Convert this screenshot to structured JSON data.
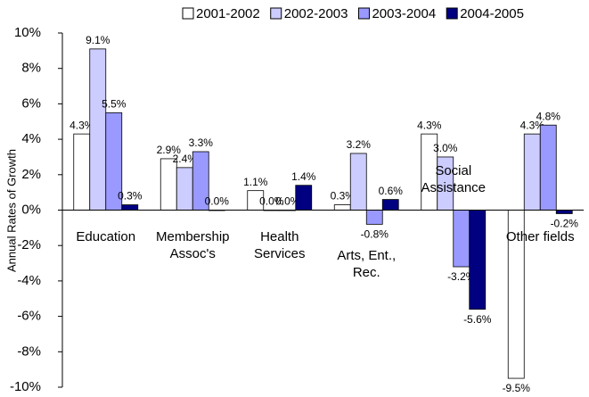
{
  "chart_data": {
    "type": "bar",
    "ylabel": "Annual Rates of Growth",
    "categories": [
      "Education",
      "Membership Assoc's",
      "Health Services",
      "Arts, Ent., Rec.",
      "Social Assistance",
      "Other fields"
    ],
    "series": [
      {
        "name": "2001-2002",
        "color": "#ffffff",
        "values": [
          4.3,
          2.9,
          1.1,
          0.3,
          4.3,
          -9.5
        ],
        "value_labels": [
          "4.3%",
          "2.9%",
          "1.1%",
          "0.3%",
          "4.3%",
          "-9.5%"
        ]
      },
      {
        "name": "2002-2003",
        "color": "#ccccff",
        "values": [
          9.1,
          2.4,
          0.0,
          3.2,
          3.0,
          4.3
        ],
        "value_labels": [
          "9.1%",
          "2.4%",
          "0.0%",
          "3.2%",
          "3.0%",
          "4.3%"
        ]
      },
      {
        "name": "2003-2004",
        "color": "#9999ff",
        "values": [
          5.5,
          3.3,
          0.0,
          -0.8,
          -3.2,
          4.8
        ],
        "value_labels": [
          "5.5%",
          "3.3%",
          "0.0%",
          "-0.8%",
          "-3.2%",
          "4.8%"
        ]
      },
      {
        "name": "2004-2005",
        "color": "#000080",
        "values": [
          0.3,
          0.0,
          1.4,
          0.6,
          -5.6,
          -0.2
        ],
        "value_labels": [
          "0.3%",
          "0.0%",
          "1.4%",
          "0.6%",
          "-5.6%",
          "-0.2%"
        ]
      }
    ],
    "ylim": [
      -10,
      10
    ],
    "yticks": [
      {
        "value": -10,
        "label": "-10%"
      },
      {
        "value": -8,
        "label": "-8%"
      },
      {
        "value": -6,
        "label": "-6%"
      },
      {
        "value": -4,
        "label": "-4%"
      },
      {
        "value": -2,
        "label": "-2%"
      },
      {
        "value": 0,
        "label": "0%"
      },
      {
        "value": 2,
        "label": "2%"
      },
      {
        "value": 4,
        "label": "4%"
      },
      {
        "value": 6,
        "label": "6%"
      },
      {
        "value": 8,
        "label": "8%"
      },
      {
        "value": 10,
        "label": "10%"
      }
    ],
    "legend": "top"
  }
}
